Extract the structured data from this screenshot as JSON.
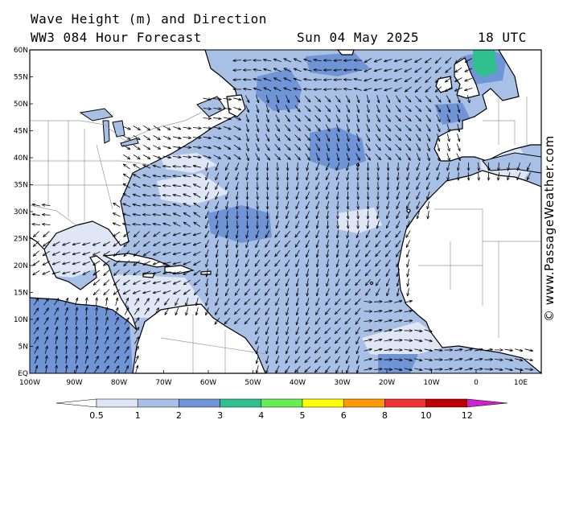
{
  "header": {
    "title": "Wave Height (m) and Direction",
    "model": "WW3 084 Hour Forecast",
    "date": "Sun 04 May 2025",
    "time": "18 UTC"
  },
  "credit": "© www.PassageWeather.com",
  "map": {
    "lat_labels": [
      "60N",
      "55N",
      "50N",
      "45N",
      "40N",
      "35N",
      "30N",
      "25N",
      "20N",
      "15N",
      "10N",
      "5N",
      "EQ"
    ],
    "lon_labels": [
      "100W",
      "90W",
      "80W",
      "70W",
      "60W",
      "50W",
      "40W",
      "30W",
      "20W",
      "10W",
      "0",
      "10E"
    ],
    "lat_range": [
      0,
      60
    ],
    "lon_range": [
      -100,
      15
    ],
    "colors": {
      "land": "#ffffff",
      "sea_base": "#a8c0e6",
      "wave_low": "#dfe6f5",
      "wave_high": "#6f95d6",
      "wave_peak": "#30c090",
      "arrow": "#000000"
    }
  },
  "legend": {
    "labels": [
      "0.5",
      "1",
      "2",
      "3",
      "4",
      "5",
      "6",
      "8",
      "10",
      "12"
    ],
    "colors": [
      "#ffffff",
      "#dfe6f5",
      "#a8c0e6",
      "#6f95d6",
      "#30c090",
      "#66ee55",
      "#ffff00",
      "#ff9900",
      "#ee3333",
      "#bb0000",
      "#cc22cc"
    ]
  }
}
